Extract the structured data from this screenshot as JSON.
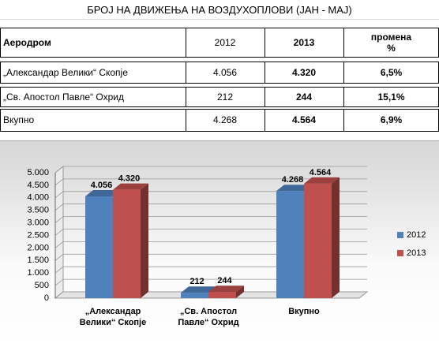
{
  "table": {
    "title": "БРОЈ НА ДВИЖЕЊА НА ВОЗДУХОПЛОВИ (ЈАН - МАЈ)",
    "header": [
      "Аеродром",
      "2012",
      "2013",
      "промена %"
    ],
    "rows": [
      [
        "„Александар Велики“ Скопје",
        "4.056",
        "4.320",
        "6,5%"
      ],
      [
        "„Св. Апостол Павле“ Охрид",
        "212",
        "244",
        "15,1%"
      ],
      [
        "Вкупно",
        "4.268",
        "4.564",
        "6,9%"
      ]
    ]
  },
  "chart_data": {
    "type": "bar",
    "categories": [
      "„Александар Велики“ Скопје",
      "„Св. Апостол Павле“ Охрид",
      "Вкупно"
    ],
    "series": [
      {
        "name": "2012",
        "color": "#4f81bd",
        "values": [
          4056,
          212,
          4268
        ],
        "value_labels": [
          "4.056",
          "212",
          "4.268"
        ]
      },
      {
        "name": "2013",
        "color": "#c0504d",
        "values": [
          4320,
          244,
          4564
        ],
        "value_labels": [
          "4.320",
          "244",
          "4.564"
        ]
      }
    ],
    "ylim": [
      0,
      5000
    ],
    "yticks": [
      0,
      {
        "value": 500,
        "label": "500"
      },
      {
        "value": 1000,
        "label": "1.000"
      },
      {
        "value": 1500,
        "label": "1.500"
      },
      {
        "value": 2000,
        "label": "2.000"
      },
      {
        "value": 2500,
        "label": "2.500"
      },
      {
        "value": 3000,
        "label": "3.000"
      },
      {
        "value": 3500,
        "label": "3.500"
      },
      {
        "value": 4000,
        "label": "4.000"
      },
      {
        "value": 4500,
        "label": "4.500"
      },
      {
        "value": 5000,
        "label": "5.000"
      }
    ],
    "grid": true,
    "legend": "right"
  }
}
